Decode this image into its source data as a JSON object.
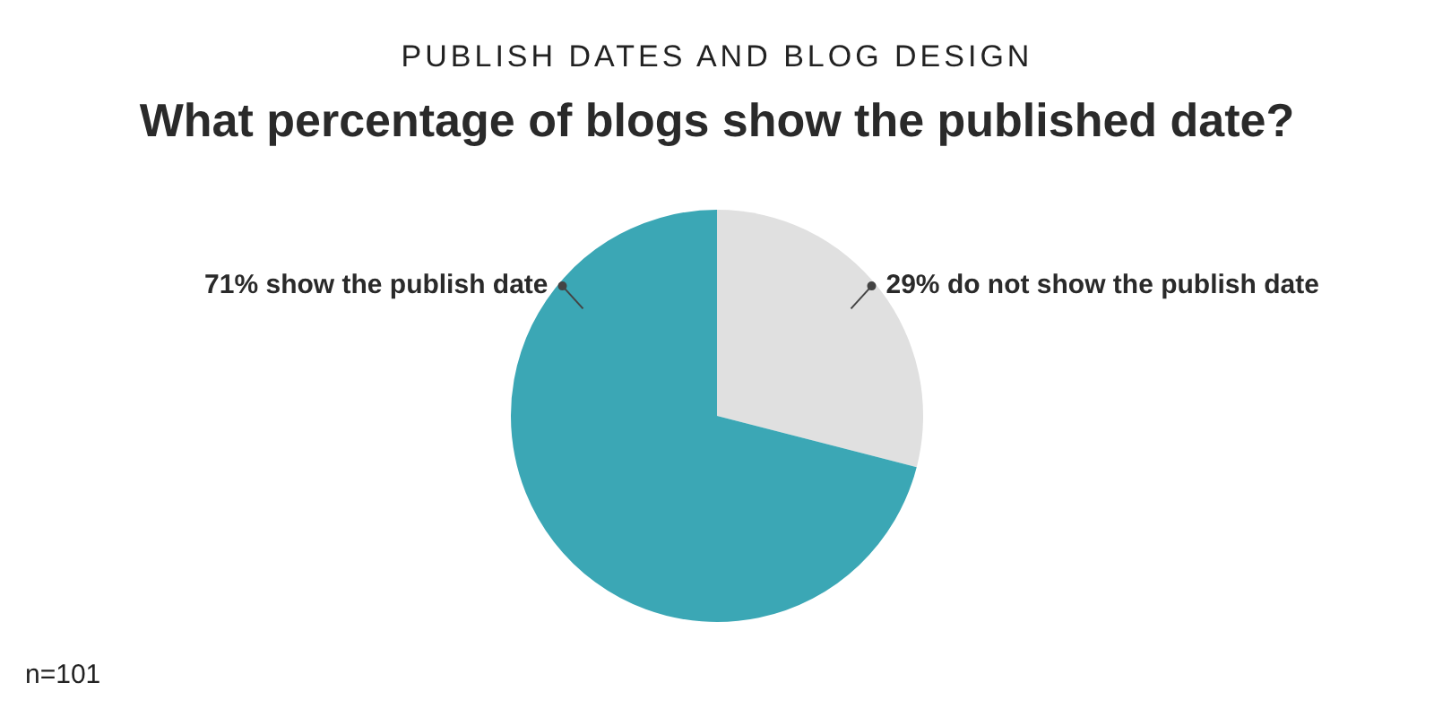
{
  "chart_data": {
    "type": "pie",
    "subtitle": "PUBLISH DATES AND BLOG DESIGN",
    "title": "What percentage of blogs show the published date?",
    "categories": [
      "29% do not show the publish date",
      "71% show the publish date"
    ],
    "values": [
      29,
      71
    ],
    "colors": [
      "#e0e0e0",
      "#3ba7b5"
    ],
    "legend": false,
    "annotations": [
      "n=101"
    ]
  }
}
